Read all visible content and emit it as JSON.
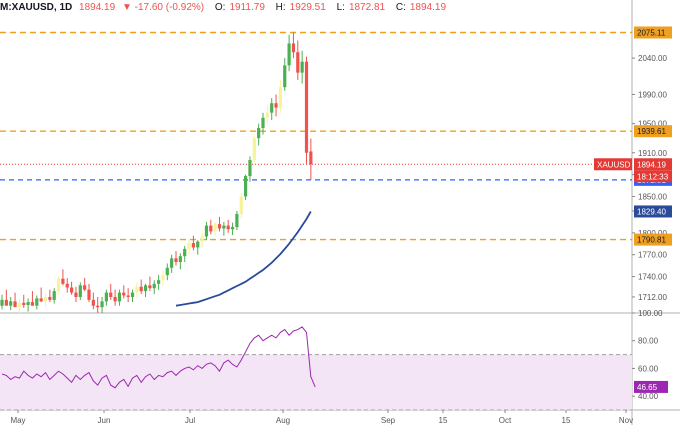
{
  "header": {
    "symbol": "M:XAUUSD, 1D",
    "last": "1894.19",
    "change": "-17.60 (-0.92%)",
    "open_label": "O:",
    "open": "1911.79",
    "high_label": "H:",
    "high": "1929.51",
    "low_label": "L:",
    "low": "1872.81",
    "close_label": "C:",
    "close": "1894.19"
  },
  "colors": {
    "up": "#26a69a",
    "up_light": "#f6f39a",
    "down": "#ef5350",
    "green_body": "#4caf50",
    "ma": "#2a4b9a",
    "resistance": "#f0a020",
    "support_blue": "#2962ff",
    "price_line": "#e53935",
    "rsi": "#9c27b0",
    "rsi_band": "#f3e5f5"
  },
  "chart_data": [
    {
      "type": "candlestick",
      "name": "XAUUSD",
      "title": "",
      "ylim": [
        1690,
        2095
      ],
      "y_ticks": [
        1712,
        1740,
        1770,
        1800,
        1830,
        1850,
        1880,
        1910,
        1950,
        1990,
        2040
      ],
      "y_tick_labels": [
        "1712.00",
        "1740.00",
        "1770.00",
        "1800.00",
        "1830.00",
        "1850.00",
        "1880.00",
        "1910.00",
        "1950.00",
        "1990.00",
        "2040.00"
      ],
      "x_labels": [
        "May",
        "Jun",
        "Jul",
        "Aug",
        "Sep",
        "15",
        "Oct",
        "15",
        "Nov"
      ],
      "horizontal_lines": [
        {
          "label": "2075.11",
          "value": 2075.11,
          "style": "resistance"
        },
        {
          "label": "1939.61",
          "value": 1939.61,
          "style": "resistance"
        },
        {
          "label": "1790.81",
          "value": 1790.81,
          "style": "resistance"
        },
        {
          "label": "1872.81",
          "value": 1872.81,
          "style": "support"
        }
      ],
      "price_tag": {
        "name": "XAUUSD",
        "value": 1894.19,
        "label": "1894.19",
        "countdown": "18:12:33"
      },
      "ma_tag": {
        "value": 1829.4,
        "label": "1829.40"
      },
      "candles": [
        [
          1700,
          1715,
          1695,
          1708
        ],
        [
          1708,
          1722,
          1702,
          1700
        ],
        [
          1700,
          1712,
          1694,
          1706
        ],
        [
          1706,
          1718,
          1700,
          1698
        ],
        [
          1698,
          1710,
          1690,
          1704
        ],
        [
          1704,
          1715,
          1697,
          1701
        ],
        [
          1701,
          1710,
          1692,
          1705
        ],
        [
          1705,
          1720,
          1700,
          1700
        ],
        [
          1700,
          1714,
          1695,
          1710
        ],
        [
          1710,
          1725,
          1705,
          1706
        ],
        [
          1706,
          1716,
          1698,
          1712
        ],
        [
          1712,
          1722,
          1705,
          1708
        ],
        [
          1708,
          1724,
          1703,
          1720
        ],
        [
          1720,
          1740,
          1715,
          1737
        ],
        [
          1737,
          1750,
          1728,
          1730
        ],
        [
          1730,
          1738,
          1718,
          1725
        ],
        [
          1725,
          1733,
          1715,
          1718
        ],
        [
          1718,
          1726,
          1705,
          1712
        ],
        [
          1712,
          1732,
          1708,
          1728
        ],
        [
          1728,
          1738,
          1720,
          1722
        ],
        [
          1722,
          1730,
          1705,
          1708
        ],
        [
          1708,
          1718,
          1695,
          1700
        ],
        [
          1700,
          1712,
          1690,
          1698
        ],
        [
          1698,
          1712,
          1690,
          1706
        ],
        [
          1706,
          1722,
          1700,
          1718
        ],
        [
          1718,
          1730,
          1708,
          1712
        ],
        [
          1712,
          1722,
          1700,
          1706
        ],
        [
          1706,
          1722,
          1700,
          1718
        ],
        [
          1718,
          1728,
          1710,
          1714
        ],
        [
          1714,
          1724,
          1705,
          1712
        ],
        [
          1712,
          1722,
          1705,
          1718
        ],
        [
          1718,
          1732,
          1712,
          1726
        ],
        [
          1726,
          1736,
          1716,
          1720
        ],
        [
          1720,
          1730,
          1712,
          1728
        ],
        [
          1728,
          1740,
          1720,
          1724
        ],
        [
          1724,
          1735,
          1716,
          1730
        ],
        [
          1730,
          1742,
          1722,
          1735
        ],
        [
          1735,
          1748,
          1728,
          1742
        ],
        [
          1742,
          1758,
          1735,
          1752
        ],
        [
          1752,
          1770,
          1745,
          1765
        ],
        [
          1765,
          1775,
          1755,
          1760
        ],
        [
          1760,
          1772,
          1750,
          1768
        ],
        [
          1768,
          1782,
          1760,
          1778
        ],
        [
          1778,
          1792,
          1770,
          1786
        ],
        [
          1786,
          1796,
          1776,
          1780
        ],
        [
          1780,
          1790,
          1770,
          1788
        ],
        [
          1788,
          1800,
          1780,
          1795
        ],
        [
          1795,
          1815,
          1790,
          1810
        ],
        [
          1810,
          1818,
          1798,
          1802
        ],
        [
          1802,
          1815,
          1796,
          1812
        ],
        [
          1812,
          1822,
          1802,
          1806
        ],
        [
          1806,
          1815,
          1796,
          1810
        ],
        [
          1810,
          1818,
          1800,
          1805
        ],
        [
          1805,
          1814,
          1797,
          1808
        ],
        [
          1808,
          1830,
          1804,
          1826
        ],
        [
          1826,
          1855,
          1820,
          1850
        ],
        [
          1850,
          1880,
          1845,
          1878
        ],
        [
          1878,
          1905,
          1870,
          1900
        ],
        [
          1900,
          1935,
          1895,
          1930
        ],
        [
          1930,
          1950,
          1920,
          1944
        ],
        [
          1944,
          1965,
          1935,
          1958
        ],
        [
          1958,
          1975,
          1950,
          1965
        ],
        [
          1965,
          1985,
          1955,
          1978
        ],
        [
          1978,
          1990,
          1960,
          1972
        ],
        [
          1972,
          2010,
          1965,
          2000
        ],
        [
          2000,
          2040,
          1995,
          2030
        ],
        [
          2030,
          2072,
          2022,
          2060
        ],
        [
          2060,
          2075,
          2040,
          2048
        ],
        [
          2048,
          2064,
          2010,
          2020
        ],
        [
          2020,
          2050,
          2005,
          2035
        ],
        [
          2035,
          2042,
          1895,
          1910
        ],
        [
          1911.79,
          1929.51,
          1872.81,
          1894.19
        ]
      ],
      "ma": [
        1700,
        1701,
        1702,
        1703,
        1704,
        1705,
        1707,
        1709,
        1711,
        1713,
        1715,
        1718,
        1721,
        1724,
        1727,
        1730,
        1733,
        1737,
        1741,
        1745,
        1749,
        1754,
        1759,
        1765,
        1771,
        1778,
        1785,
        1793,
        1801,
        1810,
        1819,
        1829.4
      ]
    },
    {
      "type": "line",
      "name": "RSI",
      "title": "",
      "ylim": [
        30,
        100
      ],
      "y_ticks": [
        40,
        60,
        80,
        100
      ],
      "y_tick_labels": [
        "40.00",
        "60.00",
        "80.00",
        "100.00"
      ],
      "levels": [
        70,
        30
      ],
      "current_label": "46.65",
      "values": [
        56,
        55,
        52,
        54,
        53,
        58,
        55,
        53,
        56,
        54,
        57,
        52,
        55,
        58,
        56,
        53,
        50,
        55,
        52,
        55,
        57,
        51,
        48,
        53,
        55,
        48,
        46,
        50,
        52,
        47,
        53,
        55,
        50,
        54,
        56,
        52,
        55,
        54,
        57,
        58,
        55,
        58,
        60,
        61,
        59,
        62,
        60,
        63,
        64,
        62,
        58,
        64,
        66,
        63,
        61,
        66,
        72,
        78,
        82,
        84,
        80,
        82,
        84,
        82,
        86,
        88,
        84,
        87,
        88,
        90,
        86,
        54,
        46.65
      ]
    }
  ]
}
